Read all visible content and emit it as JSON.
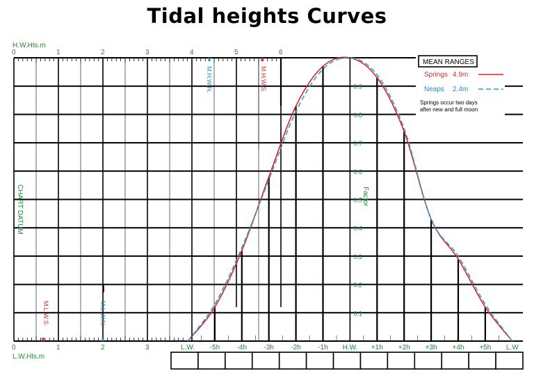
{
  "title": "Tidal heights Curves",
  "hw_scale": {
    "label": "H.W.Hts.m",
    "ticks": [
      "0",
      "1",
      "2",
      "3",
      "4",
      "5",
      "6"
    ]
  },
  "lw_scale": {
    "label": "L.W.Hts.m",
    "ticks": [
      "0",
      "1",
      "2",
      "3"
    ]
  },
  "chart_datum_label": "CHART DATUM",
  "factor_label": "Factor",
  "level_labels": {
    "mhws": "M.H.W.S.",
    "mhwn": "M.H.W.N.",
    "mlws": "M.L.W.S.",
    "mlwn": "M.L.W.N."
  },
  "legend": {
    "title": "MEAN RANGES",
    "springs_label": "Springs",
    "springs_value": "4.9m",
    "neaps_label": "Neaps",
    "neaps_value": "2.4m",
    "note_line1": "Springs occur two days",
    "note_line2": "after new and full moon"
  },
  "colors": {
    "springs": "#e02020",
    "neaps": "#2a9fd6",
    "scale_text": "#1a8a3a",
    "grid": "#000000"
  },
  "chart_data": {
    "type": "line",
    "x": [
      "L.W.",
      "-5h",
      "-4h",
      "-3h",
      "-2h",
      "-1h",
      "H.W.",
      "+1h",
      "+2h",
      "+3h",
      "+4h",
      "+5h",
      "L.W"
    ],
    "ylabel": "Factor",
    "ylim": [
      0,
      1
    ],
    "yticks": [
      "0.1",
      "0.2",
      "0.3",
      "0.4",
      "0.5",
      "0.6",
      "0.7",
      "0.8",
      "0.9"
    ],
    "series": [
      {
        "name": "Springs",
        "values": [
          0.0,
          0.12,
          0.32,
          0.58,
          0.83,
          0.97,
          1.0,
          0.93,
          0.74,
          0.43,
          0.29,
          0.12,
          0.0
        ]
      },
      {
        "name": "Neaps",
        "values": [
          0.0,
          0.13,
          0.33,
          0.57,
          0.81,
          0.96,
          1.0,
          0.94,
          0.75,
          0.43,
          0.3,
          0.13,
          0.0
        ]
      }
    ]
  },
  "time_boxes": [
    "",
    "",
    "",
    "",
    "",
    "",
    "",
    "",
    "",
    "",
    "",
    "",
    ""
  ]
}
